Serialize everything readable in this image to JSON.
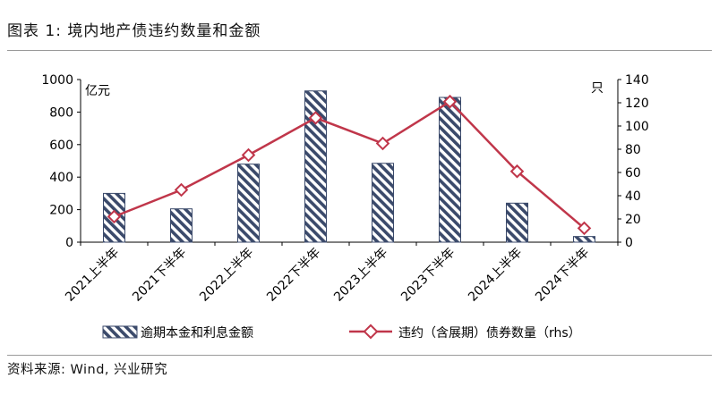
{
  "header": {
    "title": "图表 1:  境内地产债违约数量和金额"
  },
  "footer": {
    "source": "资料来源:  Wind,  兴业研究"
  },
  "colors": {
    "bar_hatch": "#3b4a6b",
    "line": "#c0364a",
    "axis": "#000000"
  },
  "chart_data": {
    "type": "bar",
    "categories": [
      "2021上半年",
      "2021下半年",
      "2022上半年",
      "2022下半年",
      "2023上半年",
      "2023下半年",
      "2024上半年",
      "2024下半年"
    ],
    "series": [
      {
        "name": "逾期本金和利息金额",
        "type": "bar",
        "axis": "left",
        "values": [
          300,
          205,
          480,
          930,
          485,
          890,
          240,
          35
        ]
      },
      {
        "name": "违约（含展期）债券数量（rhs）",
        "type": "line",
        "axis": "right",
        "values": [
          22,
          45,
          75,
          107,
          85,
          121,
          61,
          12
        ]
      }
    ],
    "ylim": [
      0,
      1000
    ],
    "yticks": [
      "0",
      "200",
      "400",
      "600",
      "800",
      "1000"
    ],
    "y2lim": [
      0,
      140
    ],
    "y2ticks": [
      "0",
      "20",
      "40",
      "60",
      "80",
      "100",
      "120",
      "140"
    ],
    "ylabel": "亿元",
    "y2label": "只",
    "grid": false,
    "legend": "bottom"
  }
}
